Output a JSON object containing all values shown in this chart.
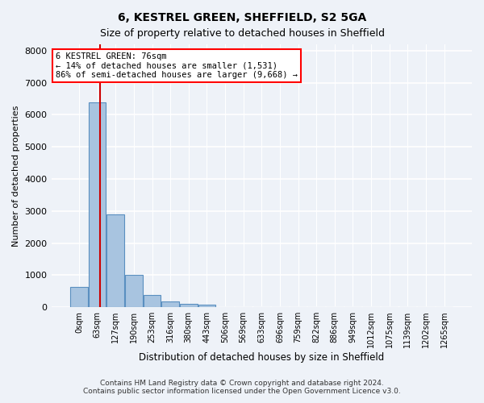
{
  "title1": "6, KESTREL GREEN, SHEFFIELD, S2 5GA",
  "title2": "Size of property relative to detached houses in Sheffield",
  "xlabel": "Distribution of detached houses by size in Sheffield",
  "ylabel": "Number of detached properties",
  "bar_values": [
    620,
    6400,
    2900,
    1000,
    380,
    170,
    100,
    80,
    0,
    0,
    0,
    0,
    0,
    0,
    0,
    0,
    0,
    0,
    0,
    0,
    0
  ],
  "bar_labels": [
    "0sqm",
    "63sqm",
    "127sqm",
    "190sqm",
    "253sqm",
    "316sqm",
    "380sqm",
    "443sqm",
    "506sqm",
    "569sqm",
    "633sqm",
    "696sqm",
    "759sqm",
    "822sqm",
    "886sqm",
    "949sqm",
    "1012sqm",
    "1075sqm",
    "1139sqm",
    "1202sqm",
    "1265sqm"
  ],
  "bar_color": "#a8c4e0",
  "bar_edge_color": "#5a8fc0",
  "vline_x": 1.15,
  "vline_color": "#cc0000",
  "annotation_title": "6 KESTREL GREEN: 76sqm",
  "annotation_line1": "← 14% of detached houses are smaller (1,531)",
  "annotation_line2": "86% of semi-detached houses are larger (9,668) →",
  "ylim": [
    0,
    8200
  ],
  "yticks": [
    0,
    1000,
    2000,
    3000,
    4000,
    5000,
    6000,
    7000,
    8000
  ],
  "footer1": "Contains HM Land Registry data © Crown copyright and database right 2024.",
  "footer2": "Contains public sector information licensed under the Open Government Licence v3.0.",
  "bg_color": "#eef2f8",
  "plot_bg_color": "#eef2f8"
}
